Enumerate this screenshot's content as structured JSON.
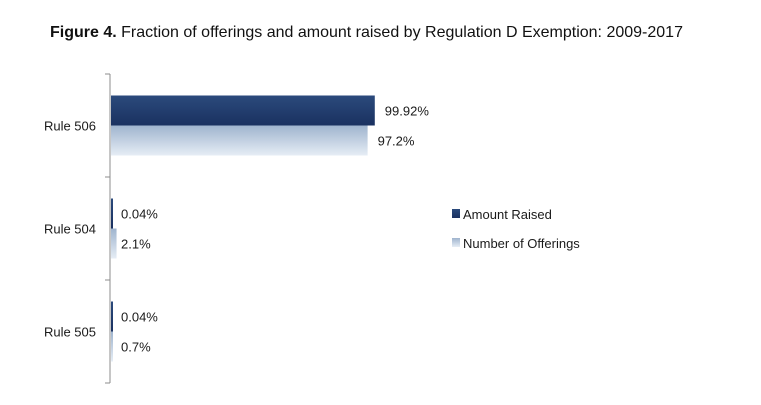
{
  "figure": {
    "label": "Figure 4.",
    "title": "Fraction of offerings and amount raised by Regulation D Exemption: 2009-2017"
  },
  "chart_data": {
    "type": "bar",
    "orientation": "horizontal",
    "title": "Figure 4. Fraction of offerings and amount raised by Regulation D Exemption: 2009-2017",
    "categories": [
      "Rule 506",
      "Rule 504",
      "Rule 505"
    ],
    "series": [
      {
        "name": "Amount Raised",
        "values": [
          99.92,
          0.04,
          0.04
        ],
        "labels": [
          "99.92%",
          "0.04%",
          "0.04%"
        ],
        "color": "#1f3864"
      },
      {
        "name": "Number of Offerings",
        "values": [
          97.2,
          2.1,
          0.7
        ],
        "labels": [
          "97.2%",
          "2.1%",
          "0.7%"
        ],
        "color": "#b4c6dc"
      }
    ],
    "xlim": [
      0,
      100
    ],
    "unit": "%",
    "grid": false,
    "legend": "right",
    "colors": {
      "amount_raised": "#1f3864",
      "number_of_offerings": "#b4c6dc",
      "axis": "#8c8c8c"
    }
  }
}
